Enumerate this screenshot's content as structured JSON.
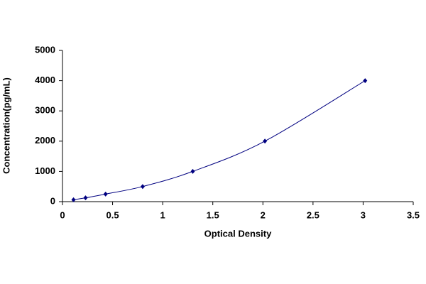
{
  "chart_data": {
    "type": "scatter",
    "line": true,
    "xlabel": "Optical Density",
    "ylabel": "Concentration(pg/mL)",
    "x": [
      0.11,
      0.23,
      0.43,
      0.8,
      1.3,
      2.02,
      3.02
    ],
    "values": [
      62.5,
      125,
      250,
      500,
      1000,
      2000,
      4000
    ],
    "color": "#000080",
    "xlim": [
      0,
      3.5
    ],
    "xticks": [
      0,
      0.5,
      1,
      1.5,
      2,
      2.5,
      3,
      3.5
    ],
    "ylim": [
      0,
      5000
    ],
    "yticks": [
      0,
      1000,
      2000,
      3000,
      4000,
      5000
    ]
  }
}
